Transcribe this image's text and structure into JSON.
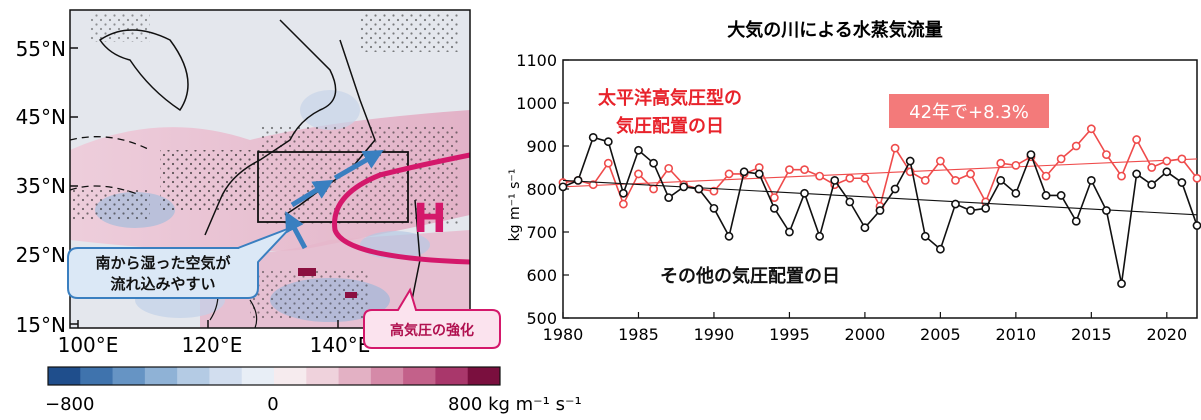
{
  "map": {
    "lat_labels": [
      "55°N",
      "45°N",
      "35°N",
      "25°N",
      "15°N"
    ],
    "lon_labels": [
      "100°E",
      "120°E",
      "140°E"
    ],
    "high_label": "H",
    "callout_moist": [
      "南から湿った空気が",
      "流れ込みやすい"
    ],
    "callout_high": "高気圧の強化",
    "colorbar": {
      "min_label": "−800",
      "mid_label": "0",
      "max_label": "800 kg m⁻¹ s⁻¹",
      "colors": [
        "#1f4e8c",
        "#3f73ad",
        "#6694c4",
        "#8fb2d6",
        "#b4cbe4",
        "#d2deef",
        "#e8eef6",
        "#f6ebee",
        "#efd2dc",
        "#e3b1c4",
        "#d58aa8",
        "#c3618a",
        "#a9376b",
        "#7a0f3e"
      ]
    },
    "colors": {
      "ocean_pink": "#e9bdd0",
      "land_gray": "#e3e6ec",
      "high_line": "#d4186b",
      "arrow": "#3a7fc0"
    }
  },
  "chart_data": {
    "type": "line",
    "title": "大気の川による水蒸気流量",
    "ylabel": "kg m⁻¹ s⁻¹",
    "xlim": [
      1980,
      2022
    ],
    "ylim": [
      500,
      1100
    ],
    "xticks": [
      1980,
      1985,
      1990,
      1995,
      2000,
      2005,
      2010,
      2015,
      2020
    ],
    "yticks": [
      500,
      600,
      700,
      800,
      900,
      1000,
      1100
    ],
    "x": [
      1980,
      1981,
      1982,
      1983,
      1984,
      1985,
      1986,
      1987,
      1988,
      1989,
      1990,
      1991,
      1992,
      1993,
      1994,
      1995,
      1996,
      1997,
      1998,
      1999,
      2000,
      2001,
      2002,
      2003,
      2004,
      2005,
      2006,
      2007,
      2008,
      2009,
      2010,
      2011,
      2012,
      2013,
      2014,
      2015,
      2016,
      2017,
      2018,
      2019,
      2020,
      2021,
      2022
    ],
    "series": [
      {
        "name": "太平洋高気圧型の気圧配置の日",
        "color": "#ef4b4b",
        "values": [
          815,
          820,
          810,
          860,
          765,
          835,
          800,
          848,
          810,
          800,
          795,
          835,
          835,
          850,
          780,
          845,
          845,
          830,
          810,
          825,
          825,
          760,
          895,
          840,
          820,
          865,
          820,
          835,
          770,
          860,
          855,
          875,
          830,
          870,
          900,
          940,
          880,
          830,
          915,
          850,
          865,
          870,
          825
        ],
        "trend": [
          805,
          870
        ]
      },
      {
        "name": "その他の気圧配置の日",
        "color": "#111111",
        "values": [
          805,
          820,
          920,
          910,
          790,
          890,
          860,
          780,
          805,
          800,
          755,
          690,
          840,
          835,
          755,
          700,
          790,
          690,
          820,
          770,
          710,
          750,
          800,
          865,
          690,
          660,
          765,
          750,
          755,
          820,
          790,
          880,
          785,
          785,
          725,
          820,
          750,
          580,
          835,
          810,
          840,
          815,
          715
        ],
        "trend": [
          820,
          740
        ]
      }
    ],
    "annotations": {
      "red_label_line1": "太平洋高気圧型の",
      "red_label_line2": "気圧配置の日",
      "trend_badge": "42年で+8.3%",
      "black_label": "その他の気圧配置の日"
    },
    "grid": false
  }
}
